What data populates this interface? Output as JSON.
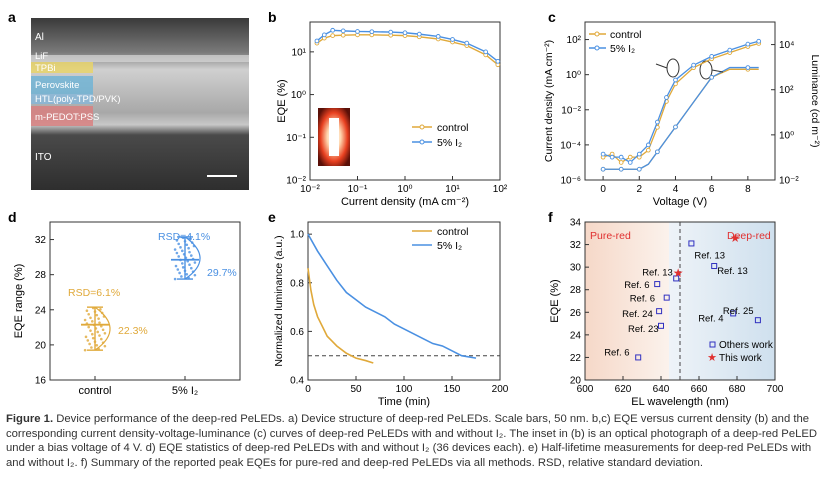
{
  "panel_labels": {
    "a": "a",
    "b": "b",
    "c": "c",
    "d": "d",
    "e": "e",
    "f": "f"
  },
  "panel_a": {
    "layers": [
      "Al",
      "LiF",
      "TPBi",
      "Perovskite",
      "HTL(poly-TPD/PVK)",
      "m-PEDOT:PSS",
      "ITO"
    ],
    "colors": {
      "tem_dark": "#2a2a2a",
      "tem_light": "#bfbfbf",
      "tpbi": "#e8d46a",
      "perovskite": "#6bb3d6",
      "htl": "#7fb8e0",
      "pedot": "#d88080"
    }
  },
  "colors": {
    "control": "#e0a93a",
    "iodine": "#4a90e2",
    "star": "#e03030",
    "dashed": "#444444"
  },
  "chart_data": [
    {
      "panel": "b",
      "type": "scatter",
      "xlabel": "Current density (mA cm⁻²)",
      "ylabel": "EQE (%)",
      "xscale": "log",
      "yscale": "log",
      "xlim": [
        0.01,
        100
      ],
      "ylim": [
        0.01,
        50
      ],
      "xticks": [
        "10⁻²",
        "10⁻¹",
        "10⁰",
        "10¹",
        "10²"
      ],
      "yticks": [
        "10⁻²",
        "10⁻¹",
        "10⁰",
        "10¹"
      ],
      "series": [
        {
          "name": "control",
          "x": [
            0.014,
            0.02,
            0.03,
            0.05,
            0.1,
            0.2,
            0.5,
            1,
            2,
            5,
            10,
            20,
            50,
            90
          ],
          "y": [
            16,
            21,
            24,
            24.5,
            25,
            25,
            24.5,
            24,
            22.5,
            20,
            17,
            14,
            8.5,
            5
          ]
        },
        {
          "name": "5% I₂",
          "x": [
            0.014,
            0.02,
            0.03,
            0.05,
            0.1,
            0.2,
            0.5,
            1,
            2,
            5,
            10,
            20,
            50,
            90
          ],
          "y": [
            18,
            25,
            32,
            31,
            30,
            29.7,
            29,
            28,
            26,
            23,
            19.5,
            16,
            10,
            6
          ]
        }
      ]
    },
    {
      "panel": "c",
      "type": "scatter",
      "xlabel": "Voltage (V)",
      "ylabel": "Current density (mA cm⁻²)",
      "ylabel_right": "Luminance (cd m⁻²)",
      "xlim": [
        -1,
        9.5
      ],
      "xticks": [
        "0",
        "2",
        "4",
        "6",
        "8"
      ],
      "yticks": [
        "10⁻⁶",
        "10⁻⁴",
        "10⁻²",
        "10⁰",
        "10²"
      ],
      "yticks_right": [
        "10⁻²",
        "10⁰",
        "10²",
        "10⁴"
      ],
      "series": [
        {
          "name": "control",
          "x": [
            0,
            0.5,
            1,
            1.5,
            2,
            2.5,
            3,
            3.5,
            4,
            5,
            6,
            7,
            8,
            8.6
          ],
          "y": [
            2e-05,
            3e-05,
            1e-05,
            2e-05,
            2e-05,
            5e-05,
            0.001,
            0.03,
            0.3,
            2.5,
            8,
            18,
            40,
            60
          ]
        },
        {
          "name": "5% I₂",
          "x": [
            0,
            0.5,
            1,
            1.5,
            2,
            2.5,
            3,
            3.5,
            4,
            5,
            6,
            7,
            8,
            8.6
          ],
          "y": [
            3e-05,
            2e-05,
            2e-05,
            1e-05,
            3e-05,
            0.0001,
            0.002,
            0.05,
            0.5,
            3.5,
            11,
            25,
            55,
            80
          ]
        }
      ]
    },
    {
      "panel": "d",
      "type": "scatter",
      "ylabel": "EQE range (%)",
      "categories": [
        "control",
        "5% I₂"
      ],
      "ylim": [
        16,
        34
      ],
      "yticks": [
        "16",
        "20",
        "24",
        "28",
        "32"
      ],
      "annotations": [
        "RSD=6.1%",
        "RSD=4.1%",
        "22.3%",
        "29.7%"
      ],
      "series": [
        {
          "name": "control",
          "mean": 22.3,
          "min": 19.4,
          "max": 24.3
        },
        {
          "name": "5% I₂",
          "mean": 29.7,
          "min": 27.5,
          "max": 32.3
        }
      ]
    },
    {
      "panel": "e",
      "type": "line",
      "xlabel": "Time (min)",
      "ylabel": "Normalized luminance (a.u.)",
      "xlim": [
        0,
        200
      ],
      "ylim": [
        0.4,
        1.05
      ],
      "xticks": [
        "0",
        "50",
        "100",
        "150",
        "200"
      ],
      "yticks": [
        "0.4",
        "0.6",
        "0.8",
        "1.0"
      ],
      "series": [
        {
          "name": "control",
          "x": [
            0,
            3,
            6,
            10,
            15,
            20,
            25,
            30,
            40,
            50,
            60,
            68
          ],
          "y": [
            0.86,
            0.77,
            0.71,
            0.66,
            0.62,
            0.58,
            0.56,
            0.54,
            0.51,
            0.49,
            0.48,
            0.47
          ]
        },
        {
          "name": "5% I₂",
          "x": [
            0,
            10,
            20,
            30,
            40,
            50,
            60,
            70,
            80,
            90,
            100,
            110,
            120,
            130,
            140,
            150,
            160,
            175
          ],
          "y": [
            1.0,
            0.93,
            0.87,
            0.81,
            0.76,
            0.73,
            0.7,
            0.68,
            0.66,
            0.63,
            0.61,
            0.59,
            0.57,
            0.55,
            0.54,
            0.52,
            0.5,
            0.49
          ]
        }
      ]
    },
    {
      "panel": "f",
      "type": "scatter",
      "xlabel": "EL wavelength (nm)",
      "ylabel": "EQE (%)",
      "xlim": [
        600,
        700
      ],
      "ylim": [
        20,
        34
      ],
      "xticks": [
        "600",
        "620",
        "640",
        "660",
        "680",
        "700"
      ],
      "yticks": [
        "20",
        "22",
        "24",
        "26",
        "28",
        "30",
        "32",
        "34"
      ],
      "regions": [
        "Pure-red",
        "Deep-red"
      ],
      "legend": [
        "Others work",
        "This work"
      ],
      "series": [
        {
          "name": "Others work",
          "points": [
            {
              "x": 628,
              "y": 22.0,
              "label": "Ref. 6"
            },
            {
              "x": 640,
              "y": 24.8,
              "label": "Ref. 23"
            },
            {
              "x": 639,
              "y": 26.1,
              "label": "Ref. 24"
            },
            {
              "x": 643,
              "y": 27.3,
              "label": "Ref. 6"
            },
            {
              "x": 638,
              "y": 28.5,
              "label": "Ref. 6"
            },
            {
              "x": 648,
              "y": 29.0,
              "label": "Ref. 13"
            },
            {
              "x": 656,
              "y": 32.1,
              "label": "Ref. 13"
            },
            {
              "x": 668,
              "y": 30.1,
              "label": "Ref. 13"
            },
            {
              "x": 678,
              "y": 25.9,
              "label": "Ref. 4"
            },
            {
              "x": 691,
              "y": 25.3,
              "label": "Ref. 25"
            }
          ]
        },
        {
          "name": "This work",
          "points": [
            {
              "x": 649,
              "y": 29.5
            },
            {
              "x": 679,
              "y": 32.6
            }
          ]
        }
      ]
    }
  ],
  "caption": {
    "label": "Figure 1.",
    "text": " Device performance of the deep-red PeLEDs. a) Device structure of deep-red PeLEDs. Scale bars, 50 nm. b,c) EQE versus current density (b) and the corresponding current density-voltage-luminance (c) curves of deep-red PeLEDs with and without I₂. The inset in (b) is an optical photograph of a deep-red PeLED under a bias voltage of 4 V. d) EQE statistics of deep-red PeLEDs with and without I₂ (36 devices each). e) Half-lifetime measurements for deep-red PeLEDs with and without I₂. f) Summary of the reported peak EQEs for pure-red and deep-red PeLEDs via all methods. RSD, relative standard deviation."
  }
}
